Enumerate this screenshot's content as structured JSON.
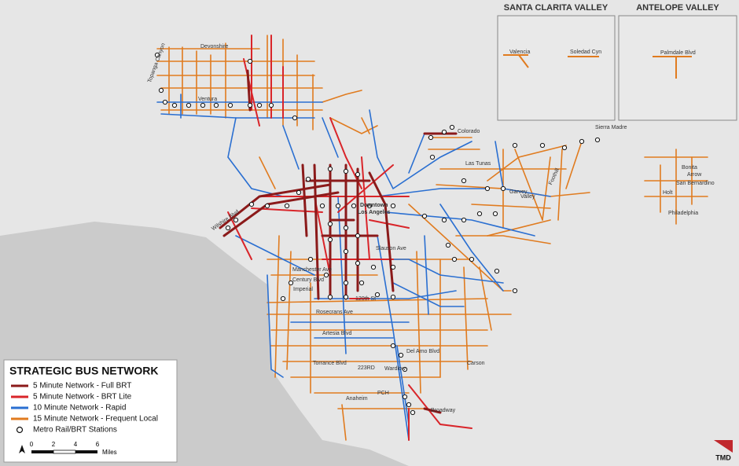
{
  "legend": {
    "title": "STRATEGIC BUS NETWORK",
    "items": [
      "5 Minute Network - Full BRT",
      "5 Minute Network - BRT Lite",
      "10 Minute Network - Rapid",
      "15 Minute Network - Frequent Local",
      "Metro Rail/BRT Stations"
    ]
  },
  "scale_bar": {
    "ticks": [
      "0",
      "2",
      "4",
      "6"
    ],
    "unit": "Miles"
  },
  "insets": [
    {
      "title": "SANTA CLARITA VALLEY",
      "labels": [
        "Valencia",
        "Soledad Cyn"
      ]
    },
    {
      "title": "ANTELOPE VALLEY",
      "labels": [
        "Palmdale Blvd"
      ]
    }
  ],
  "street_labels": [
    "Devonshire",
    "Topanga Canyon",
    "Ventura",
    "Colorado",
    "Sierra Madre",
    "Las Tunas",
    "Valley",
    "Wilshire Blvd",
    "Downtown",
    "Los Angeles",
    "Slauson Ave",
    "Manchester Ave",
    "Century Blvd",
    "Imperial",
    "120th St",
    "Rosecrans Ave",
    "Artesia Blvd",
    "Torrance Blvd",
    "223RD",
    "Wardlow",
    "PCH",
    "Anaheim",
    "Broadway",
    "Carson",
    "Del Amo Blvd",
    "Garvey",
    "Holt",
    "Philadelphia",
    "San Bernardino",
    "Bonita",
    "Arrow",
    "Foothill"
  ],
  "logo": "TMD"
}
